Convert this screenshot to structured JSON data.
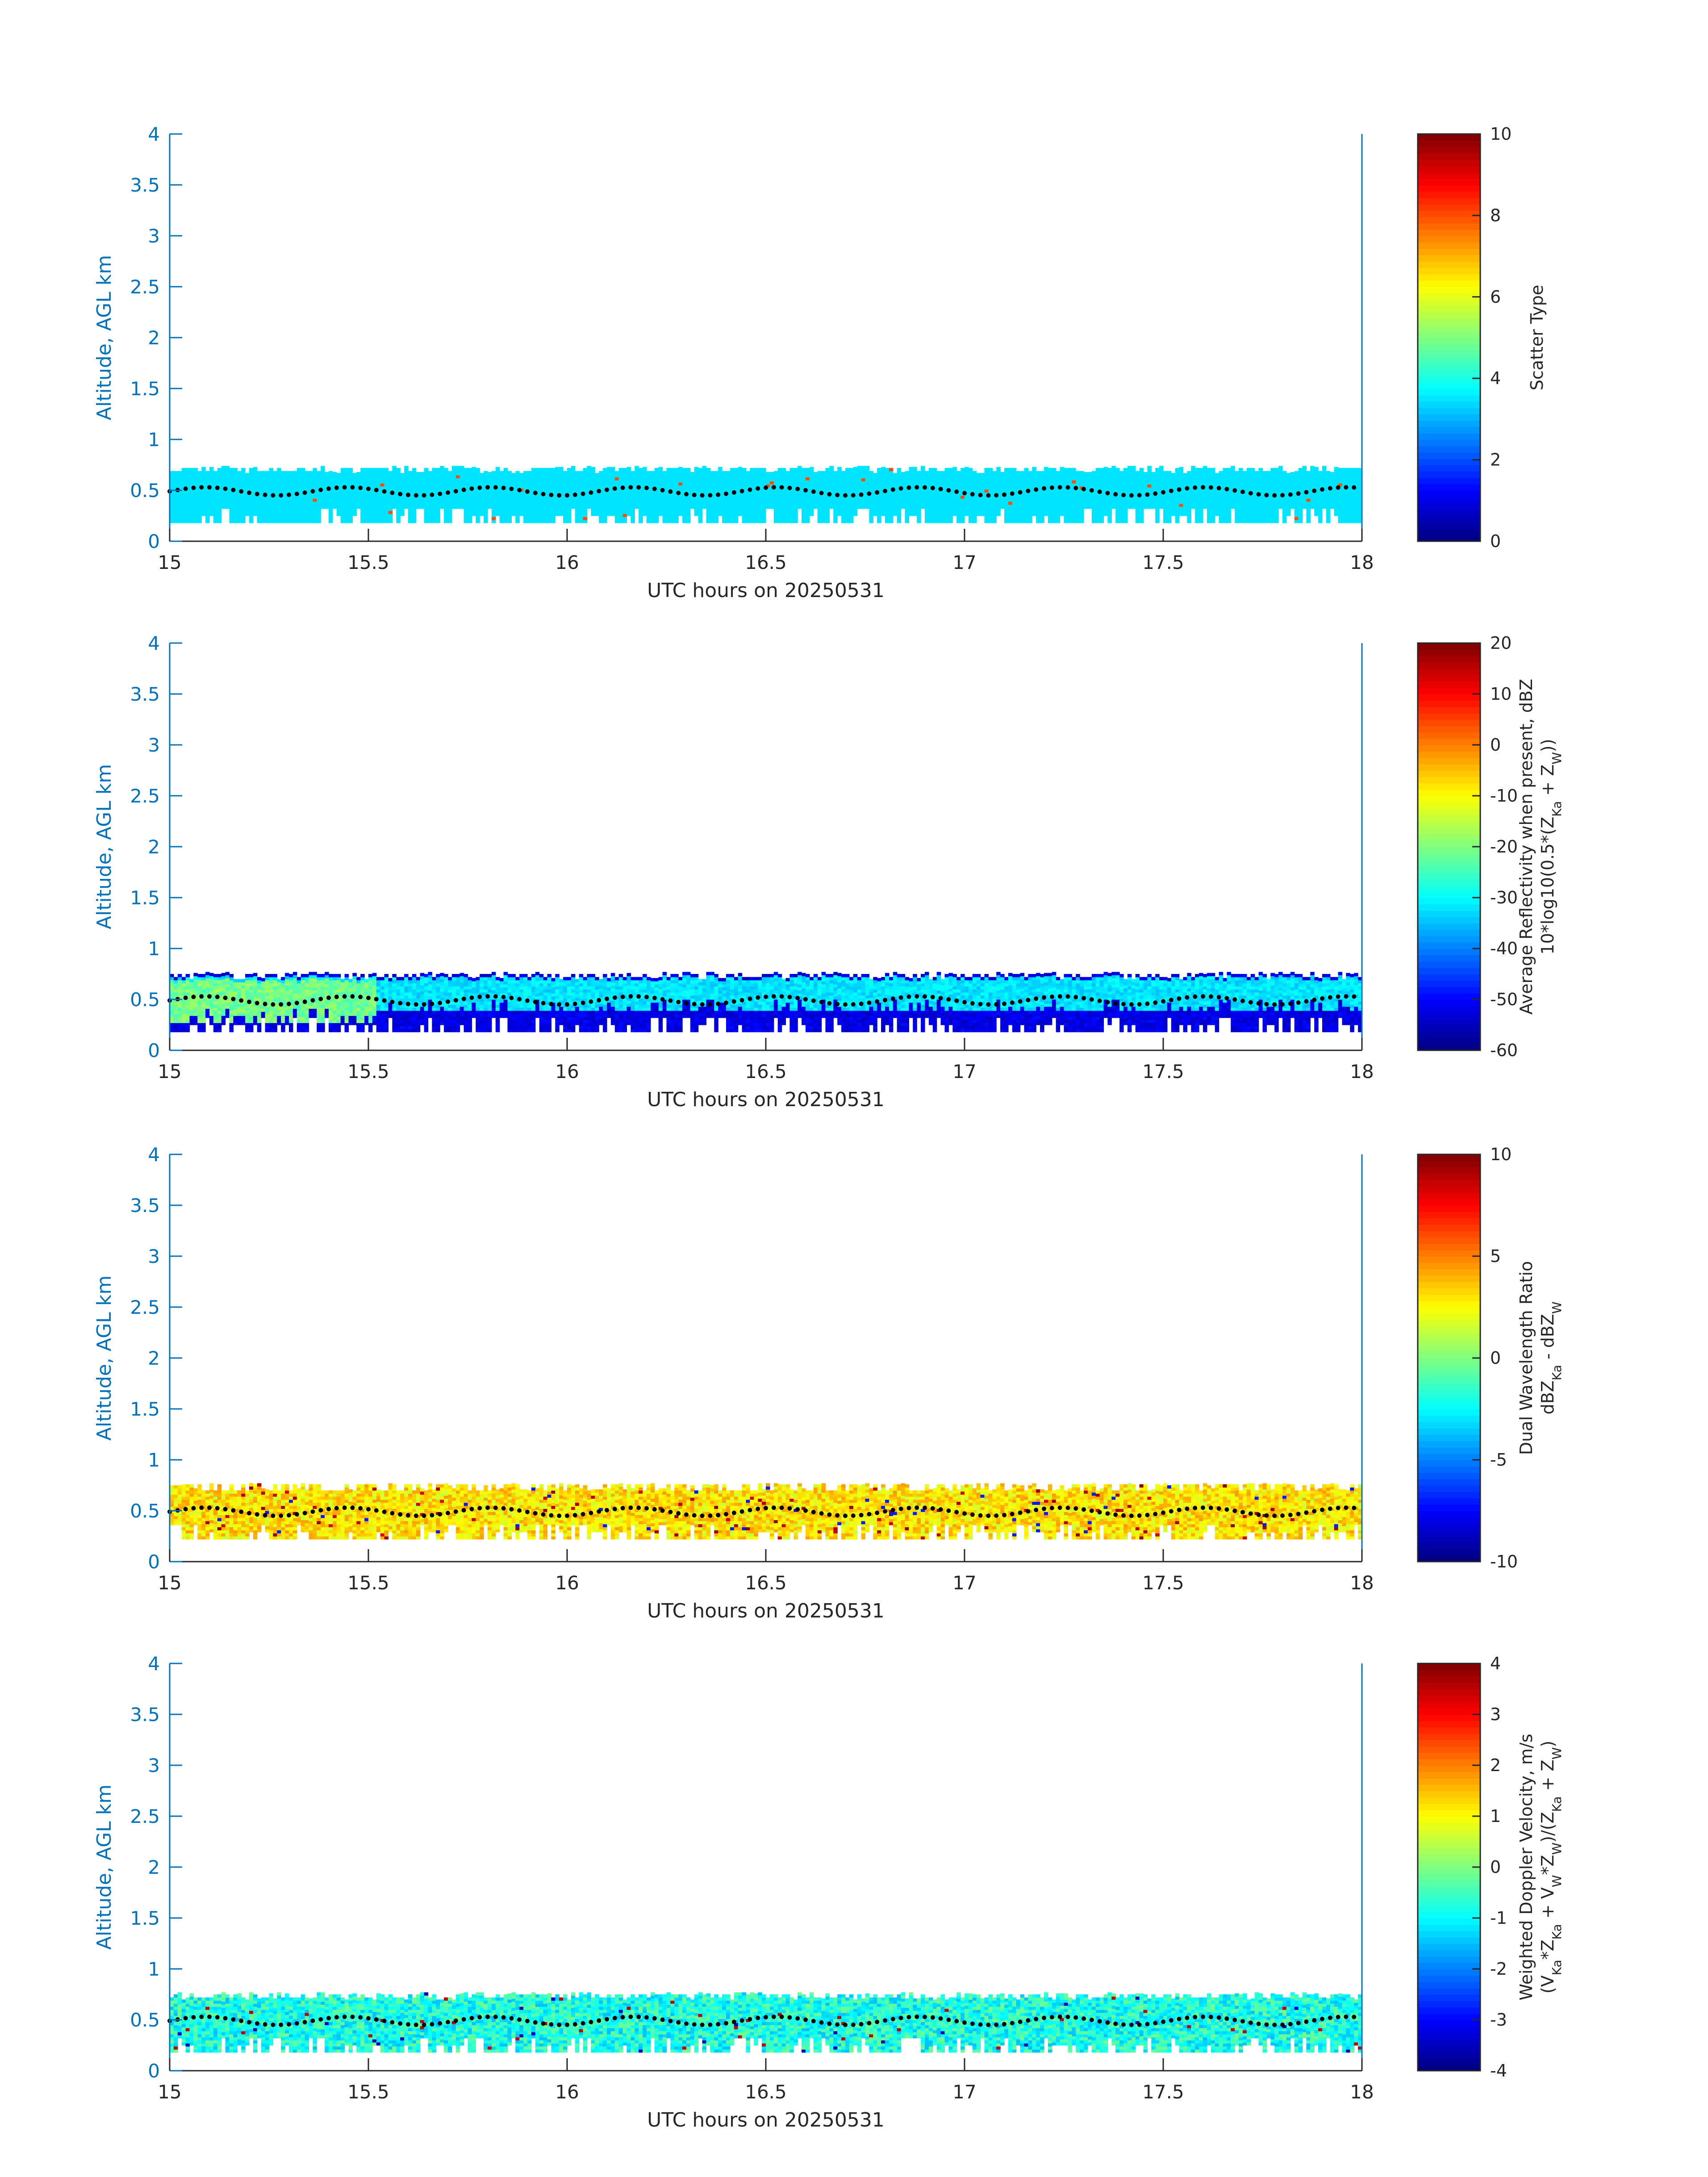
{
  "chart_data": [
    {
      "type": "heatmap",
      "title": "",
      "xlabel": "UTC hours on 20250531",
      "ylabel": "Altitude, AGL km",
      "xlim": [
        15,
        18
      ],
      "ylim": [
        0,
        4
      ],
      "x_ticks": [
        "15",
        "15.5",
        "16",
        "16.5",
        "17",
        "17.5",
        "18"
      ],
      "y_ticks": [
        "0",
        "0.5",
        "1",
        "1.5",
        "2",
        "2.5",
        "3",
        "3.5",
        "4"
      ],
      "colorbar": {
        "label_lines": [
          "Scatter Type"
        ],
        "range": [
          0,
          10
        ],
        "ticks": [
          "0",
          "2",
          "4",
          "6",
          "8",
          "10"
        ]
      },
      "field": "scatter_type",
      "layer": {
        "bottom_km": 0.18,
        "top_km": 0.73,
        "typical_value": 3.5,
        "occasional_value": 8
      }
    },
    {
      "type": "heatmap",
      "title": "",
      "xlabel": "UTC hours on 20250531",
      "ylabel": "Altitude, AGL km",
      "xlim": [
        15,
        18
      ],
      "ylim": [
        0,
        4
      ],
      "x_ticks": [
        "15",
        "15.5",
        "16",
        "16.5",
        "17",
        "17.5",
        "18"
      ],
      "y_ticks": [
        "0",
        "0.5",
        "1",
        "1.5",
        "2",
        "2.5",
        "3",
        "3.5",
        "4"
      ],
      "colorbar": {
        "label_lines": [
          "Average Reflectivity when present, dBZ",
          "10*log10(0.5*(Z_Ka + Z_W))"
        ],
        "range": [
          -60,
          20
        ],
        "ticks": [
          "-60",
          "-50",
          "-40",
          "-30",
          "-20",
          "-10",
          "0",
          "10",
          "20"
        ]
      },
      "field": "reflectivity",
      "layer": {
        "bottom_km": 0.18,
        "top_km": 0.76,
        "core_value": -35,
        "edge_value": -55
      }
    },
    {
      "type": "heatmap",
      "title": "",
      "xlabel": "UTC hours on 20250531",
      "ylabel": "Altitude, AGL km",
      "xlim": [
        15,
        18
      ],
      "ylim": [
        0,
        4
      ],
      "x_ticks": [
        "15",
        "15.5",
        "16",
        "16.5",
        "17",
        "17.5",
        "18"
      ],
      "y_ticks": [
        "0",
        "0.5",
        "1",
        "1.5",
        "2",
        "2.5",
        "3",
        "3.5",
        "4"
      ],
      "colorbar": {
        "label_lines": [
          "Dual Wavelength Ratio",
          "dBZ_Ka - dBZ_W"
        ],
        "range": [
          -10,
          10
        ],
        "ticks": [
          "-10",
          "-5",
          "0",
          "5",
          "10"
        ]
      },
      "field": "dwr",
      "layer": {
        "bottom_km": 0.22,
        "top_km": 0.76,
        "typical_value": 3
      }
    },
    {
      "type": "heatmap",
      "title": "",
      "xlabel": "UTC hours on 20250531",
      "ylabel": "Altitude, AGL km",
      "xlim": [
        15,
        18
      ],
      "ylim": [
        0,
        4
      ],
      "x_ticks": [
        "15",
        "15.5",
        "16",
        "16.5",
        "17",
        "17.5",
        "18"
      ],
      "y_ticks": [
        "0",
        "0.5",
        "1",
        "1.5",
        "2",
        "2.5",
        "3",
        "3.5",
        "4"
      ],
      "colorbar": {
        "label_lines": [
          "Weighted Doppler Velocity, m/s",
          "(V_Ka*Z_Ka + V_W*Z_W)/(Z_Ka + Z_W)"
        ],
        "range": [
          -4,
          4
        ],
        "ticks": [
          "-4",
          "-3",
          "-2",
          "-1",
          "0",
          "1",
          "2",
          "3",
          "4"
        ]
      },
      "field": "velocity",
      "layer": {
        "bottom_km": 0.18,
        "top_km": 0.76,
        "typical_value": -0.8
      }
    }
  ],
  "overlay": {
    "description_marker": "black dotted trace",
    "color": "#000000",
    "trace_altitude_km": 0.5
  },
  "colors": {
    "axis_blue": "#0072BD",
    "text_dark": "#262626"
  }
}
